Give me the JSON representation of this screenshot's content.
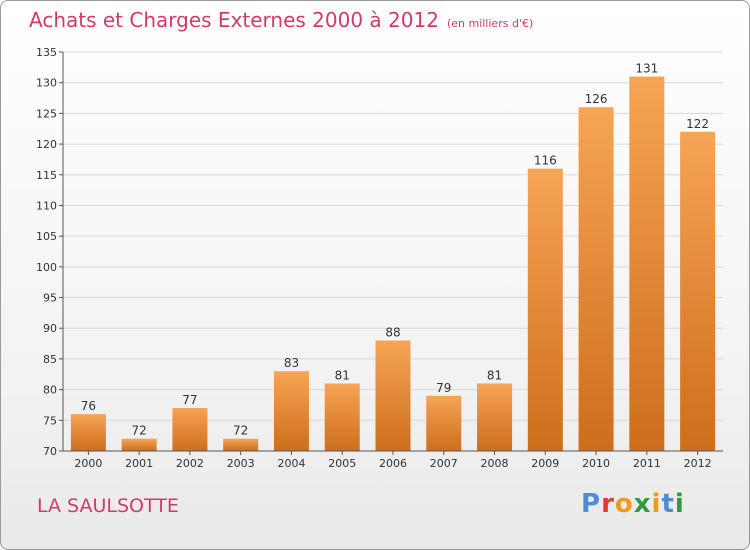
{
  "title": "Achats et Charges Externes 2000 à 2012",
  "unit": "(en milliers d'€)",
  "location": "LA SAULSOTTE",
  "logo": {
    "text": "Proxiti",
    "colors": [
      "#4a8fd6",
      "#e23b3b",
      "#f09a1a",
      "#2e9d3a",
      "#f09a1a",
      "#4a8fd6",
      "#2e9d3a"
    ]
  },
  "colors": {
    "title": "#d53a66",
    "bar_top": "#f6a455",
    "bar_bottom": "#cd6e1c"
  },
  "chart_data": {
    "type": "bar",
    "title": "Achats et Charges Externes 2000 à 2012",
    "categories": [
      "2000",
      "2001",
      "2002",
      "2003",
      "2004",
      "2005",
      "2006",
      "2007",
      "2008",
      "2009",
      "2010",
      "2011",
      "2012"
    ],
    "values": [
      76,
      72,
      77,
      72,
      83,
      81,
      88,
      79,
      81,
      116,
      126,
      131,
      122
    ],
    "ylim": [
      70,
      135
    ],
    "yticks": [
      70,
      75,
      80,
      85,
      90,
      95,
      100,
      105,
      110,
      115,
      120,
      125,
      130,
      135
    ],
    "grid": true
  }
}
